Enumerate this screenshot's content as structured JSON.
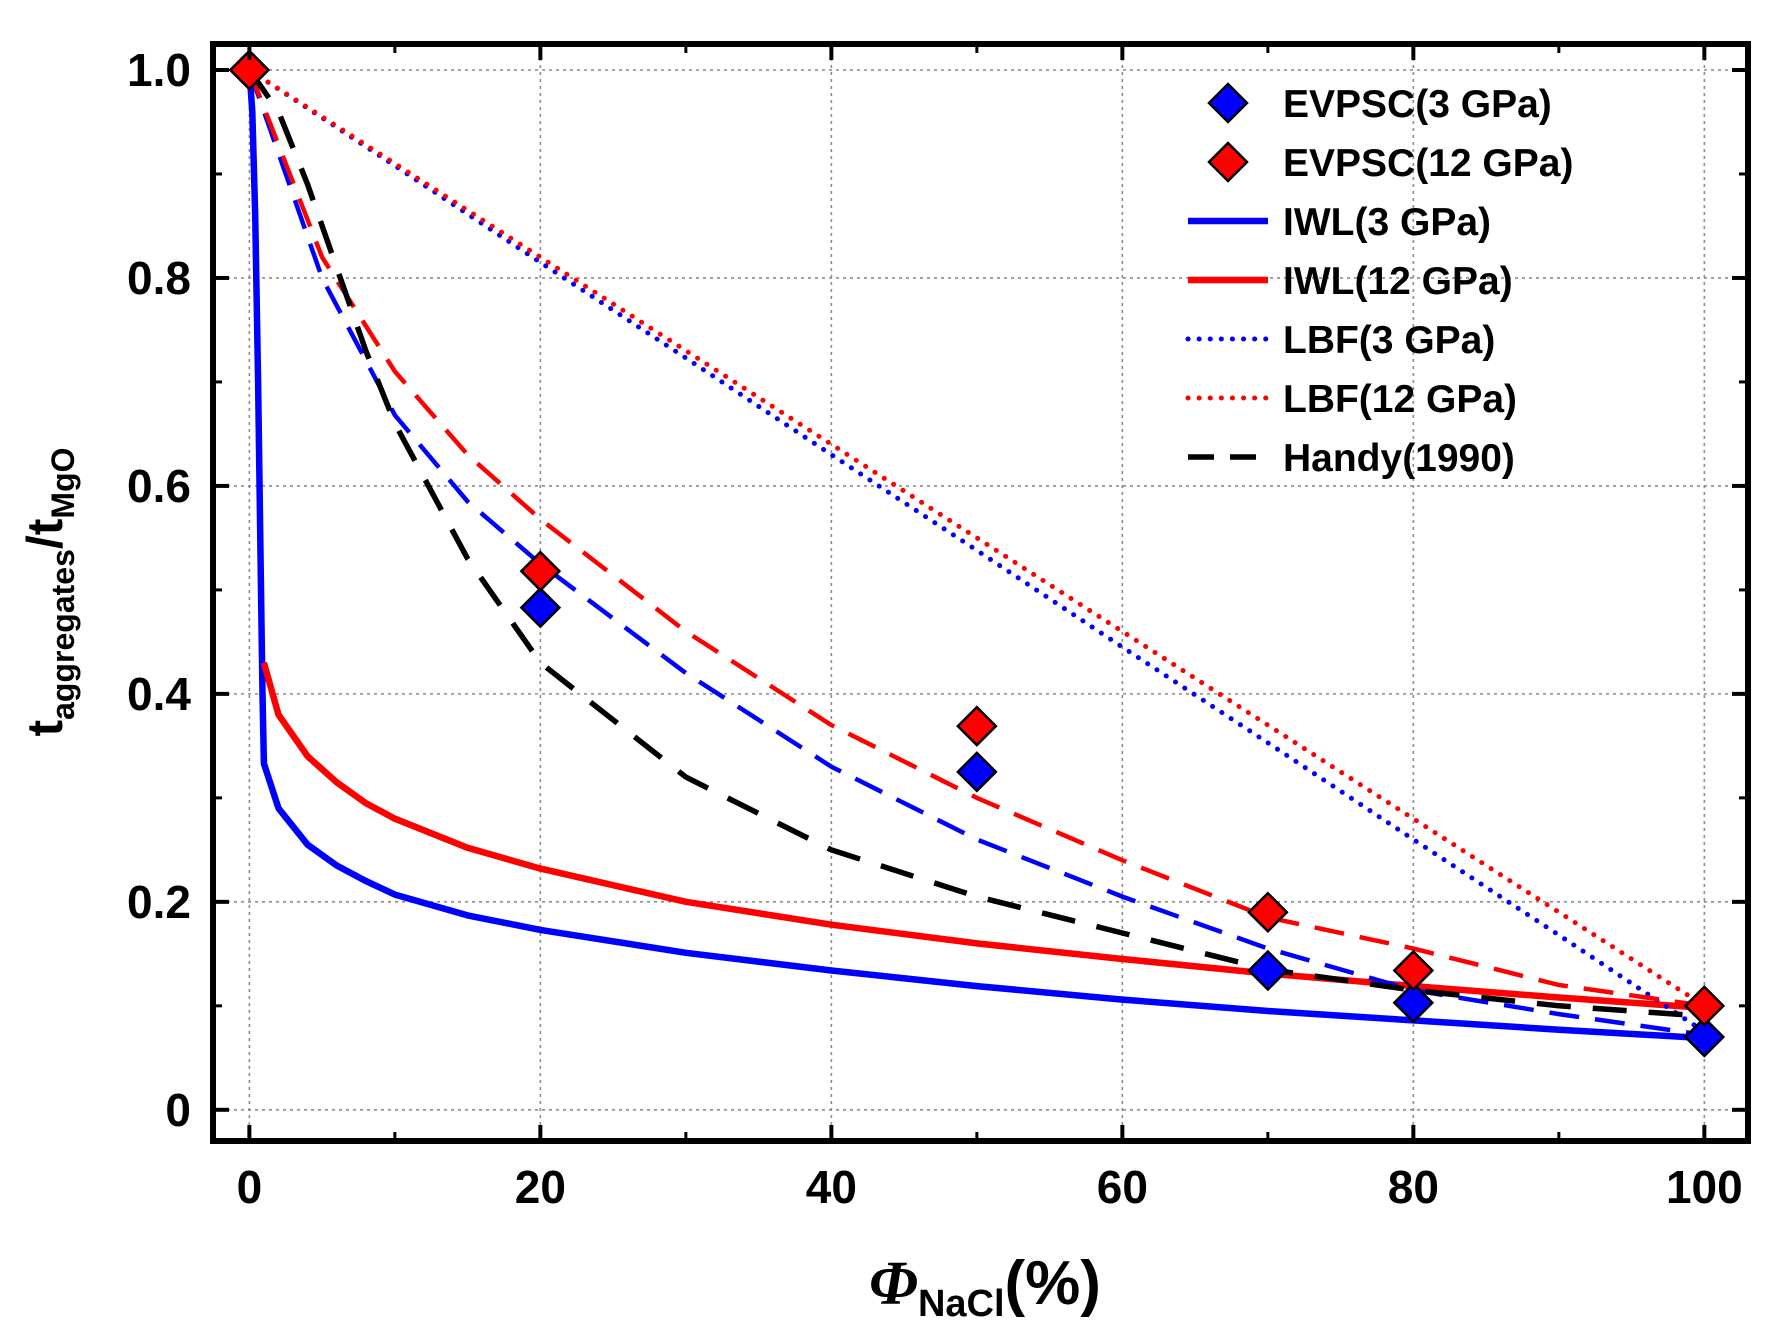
{
  "chart_data": {
    "type": "scatter",
    "title": "",
    "xlabel": {
      "symbol": "Φ",
      "subscript": "NaCl",
      "suffix": "(%)"
    },
    "ylabel": {
      "t1": "t",
      "sub1": "aggregates",
      "slash": "/t",
      "sub2": "MgO"
    },
    "xlim": [
      -2.5,
      103
    ],
    "ylim": [
      -0.03,
      1.025
    ],
    "xticks": [
      0,
      20,
      40,
      60,
      80,
      100
    ],
    "yticks": [
      0,
      0.2,
      0.4,
      0.6,
      0.8,
      1.0
    ],
    "xtick_labels": [
      "0",
      "20",
      "40",
      "60",
      "80",
      "100"
    ],
    "ytick_labels": [
      "0",
      "0.2",
      "0.4",
      "0.6",
      "0.8",
      "1.0"
    ],
    "grid": true,
    "legend_position": "top-right",
    "series": [
      {
        "name": "EVPSC(3 GPa)",
        "kind": "marker",
        "color": "#0000ff",
        "x": [
          0,
          20,
          50,
          70,
          80,
          100
        ],
        "y": [
          1.0,
          0.483,
          0.325,
          0.134,
          0.103,
          0.07
        ]
      },
      {
        "name": "EVPSC(12 GPa)",
        "kind": "marker",
        "color": "#ff0000",
        "x": [
          0,
          20,
          50,
          70,
          80,
          100
        ],
        "y": [
          1.0,
          0.518,
          0.369,
          0.19,
          0.134,
          0.1
        ]
      },
      {
        "name": "IWL(3 GPa)",
        "kind": "solid",
        "color": "#0000ff",
        "x": [
          0,
          0.2,
          0.4,
          0.6,
          0.8,
          0.9,
          1,
          2,
          4,
          6,
          8,
          10,
          15,
          20,
          30,
          40,
          50,
          60,
          70,
          80,
          90,
          100
        ],
        "y": [
          1.0,
          0.96,
          0.86,
          0.7,
          0.5,
          0.4,
          0.333,
          0.29,
          0.255,
          0.235,
          0.22,
          0.207,
          0.187,
          0.173,
          0.151,
          0.134,
          0.119,
          0.106,
          0.095,
          0.086,
          0.077,
          0.069
        ]
      },
      {
        "name": "IWL(12 GPa)",
        "kind": "solid",
        "color": "#ff0000",
        "x": [
          1,
          2,
          4,
          6,
          8,
          10,
          15,
          20,
          30,
          40,
          50,
          60,
          70,
          80,
          90,
          100
        ],
        "y": [
          0.43,
          0.38,
          0.34,
          0.315,
          0.295,
          0.28,
          0.252,
          0.232,
          0.2,
          0.178,
          0.16,
          0.145,
          0.131,
          0.119,
          0.108,
          0.098
        ]
      },
      {
        "name": "LBF(3 GPa)",
        "kind": "dotted",
        "color": "#0000ff",
        "x": [
          0,
          10,
          20,
          30,
          40,
          50,
          60,
          70,
          80,
          90,
          100
        ],
        "y": [
          1.0,
          0.908,
          0.815,
          0.723,
          0.63,
          0.538,
          0.445,
          0.353,
          0.26,
          0.168,
          0.075
        ]
      },
      {
        "name": "LBF(12 GPa)",
        "kind": "dotted",
        "color": "#ff0000",
        "x": [
          0,
          10,
          20,
          30,
          40,
          50,
          60,
          70,
          80,
          90,
          100
        ],
        "y": [
          1.0,
          0.91,
          0.82,
          0.73,
          0.64,
          0.55,
          0.46,
          0.37,
          0.28,
          0.19,
          0.1
        ]
      },
      {
        "name": "",
        "kind": "dashed",
        "color": "#0000ff",
        "x": [
          0,
          5,
          10,
          15,
          20,
          30,
          40,
          50,
          60,
          70,
          80,
          90,
          100
        ],
        "y": [
          1.0,
          0.8,
          0.668,
          0.585,
          0.525,
          0.42,
          0.33,
          0.26,
          0.205,
          0.155,
          0.115,
          0.092,
          0.072
        ]
      },
      {
        "name": "",
        "kind": "dashed",
        "color": "#ff0000",
        "x": [
          0,
          5,
          10,
          15,
          20,
          30,
          40,
          50,
          60,
          70,
          80,
          90,
          100
        ],
        "y": [
          1.0,
          0.82,
          0.71,
          0.63,
          0.568,
          0.46,
          0.37,
          0.3,
          0.24,
          0.185,
          0.155,
          0.12,
          0.1
        ]
      },
      {
        "name": "Handy(1990)",
        "kind": "dashed",
        "color": "#000000",
        "x": [
          0,
          2,
          4,
          6,
          8,
          10,
          15,
          20,
          30,
          40,
          50,
          60,
          70,
          80,
          90,
          100
        ],
        "y": [
          1.0,
          0.96,
          0.89,
          0.81,
          0.73,
          0.66,
          0.53,
          0.43,
          0.32,
          0.25,
          0.205,
          0.17,
          0.135,
          0.115,
          0.1,
          0.09
        ]
      }
    ]
  }
}
